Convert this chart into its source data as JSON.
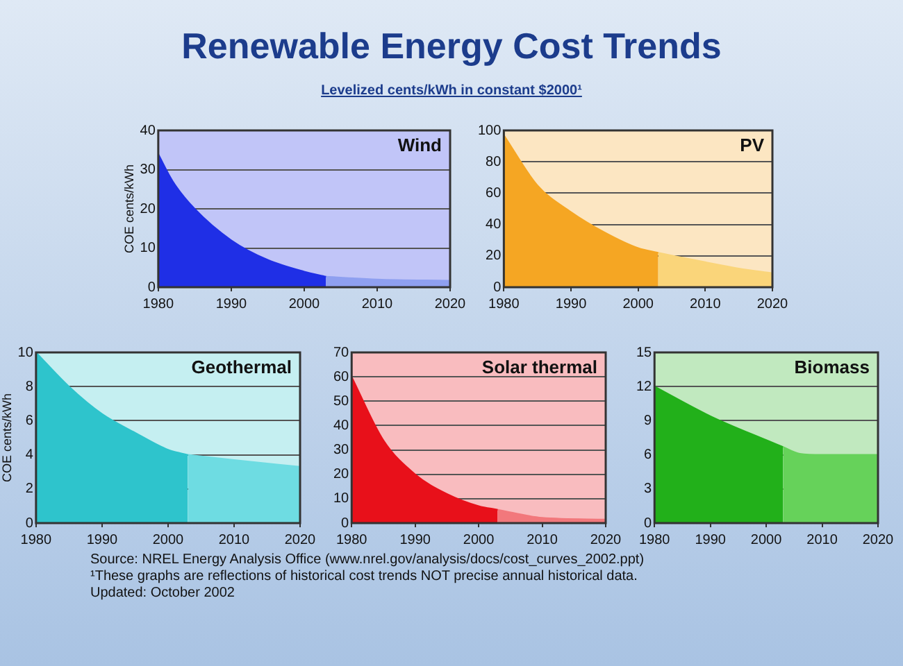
{
  "chart_data": [
    {
      "type": "other",
      "title": "Renewable Energy Cost Trends",
      "subtitle": "Levelized cents/kWh in constant $2000¹",
      "annotations": [
        "Source: NREL Energy Analysis Office (www.nrel.gov/analysis/docs/cost_curves_2002.ppt)",
        "¹These graphs are reflections of historical cost trends NOT precise annual historical data.",
        "Updated: October 2002"
      ]
    },
    {
      "type": "area",
      "title": "Wind",
      "ylabel": "COE cents/kWh",
      "xlim": [
        1980,
        2020
      ],
      "xticks": [
        1980,
        1990,
        2000,
        2010,
        2020
      ],
      "ylim": [
        0,
        40
      ],
      "yticks": [
        0,
        10,
        20,
        30,
        40
      ],
      "grid": "y",
      "series": [
        {
          "color": "#1f2fe6",
          "x": [
            1980,
            1982,
            1985,
            1990,
            1995,
            2000,
            2003
          ],
          "values": [
            34,
            27,
            20,
            12,
            7,
            4,
            2.7
          ]
        },
        {
          "color": "#8fa0f0",
          "x": [
            2003,
            2010,
            2020
          ],
          "values": [
            2.7,
            2,
            1.7
          ]
        }
      ]
    },
    {
      "type": "area",
      "title": "PV",
      "xlim": [
        1980,
        2020
      ],
      "xticks": [
        1980,
        1990,
        2000,
        2010,
        2020
      ],
      "ylim": [
        0,
        100
      ],
      "yticks": [
        0,
        20,
        40,
        60,
        80,
        100
      ],
      "grid": "y",
      "series": [
        {
          "color": "#f5a623",
          "x": [
            1980,
            1985,
            1990,
            1995,
            2000,
            2003
          ],
          "values": [
            97,
            65,
            48,
            35,
            25,
            22
          ]
        },
        {
          "color": "#fad57a",
          "x": [
            2003,
            2010,
            2015,
            2020
          ],
          "values": [
            22,
            16,
            12,
            9
          ]
        }
      ]
    },
    {
      "type": "area",
      "title": "Geothermal",
      "ylabel": "COE cents/kWh",
      "xlim": [
        1980,
        2020
      ],
      "xticks": [
        1980,
        1990,
        2000,
        2010,
        2020
      ],
      "ylim": [
        0,
        10
      ],
      "yticks": [
        0,
        2,
        4,
        6,
        8,
        10
      ],
      "grid": "y",
      "series": [
        {
          "color": "#2ec4cc",
          "x": [
            1980,
            1985,
            1990,
            1995,
            2000,
            2003
          ],
          "values": [
            10,
            8,
            6.4,
            5.3,
            4.3,
            4
          ]
        },
        {
          "color": "#6edce2",
          "x": [
            2003,
            2010,
            2020
          ],
          "values": [
            4,
            3.7,
            3.3
          ]
        }
      ]
    },
    {
      "type": "area",
      "title": "Solar thermal",
      "xlim": [
        1980,
        2020
      ],
      "xticks": [
        1980,
        1990,
        2000,
        2010,
        2020
      ],
      "ylim": [
        0,
        70
      ],
      "yticks": [
        0,
        10,
        20,
        30,
        40,
        50,
        60,
        70
      ],
      "grid": "y",
      "series": [
        {
          "color": "#e8101a",
          "x": [
            1980,
            1985,
            1990,
            1995,
            2000,
            2003
          ],
          "values": [
            60,
            34,
            20,
            12,
            7,
            5.5
          ]
        },
        {
          "color": "#f2787c",
          "x": [
            2003,
            2010,
            2020
          ],
          "values": [
            5.5,
            2.2,
            1.5
          ]
        }
      ]
    },
    {
      "type": "area",
      "title": "Biomass",
      "xlim": [
        1980,
        2020
      ],
      "xticks": [
        1980,
        1990,
        2000,
        2010,
        2020
      ],
      "ylim": [
        0,
        15
      ],
      "yticks": [
        0,
        3,
        6,
        9,
        12,
        15
      ],
      "grid": "y",
      "series": [
        {
          "color": "#22b01a",
          "x": [
            1980,
            1990,
            2000,
            2003
          ],
          "values": [
            12,
            9.4,
            7.3,
            6.7
          ]
        },
        {
          "color": "#66d25a",
          "x": [
            2003,
            2006,
            2010,
            2020
          ],
          "values": [
            6.7,
            6.1,
            6,
            6
          ]
        }
      ]
    }
  ]
}
